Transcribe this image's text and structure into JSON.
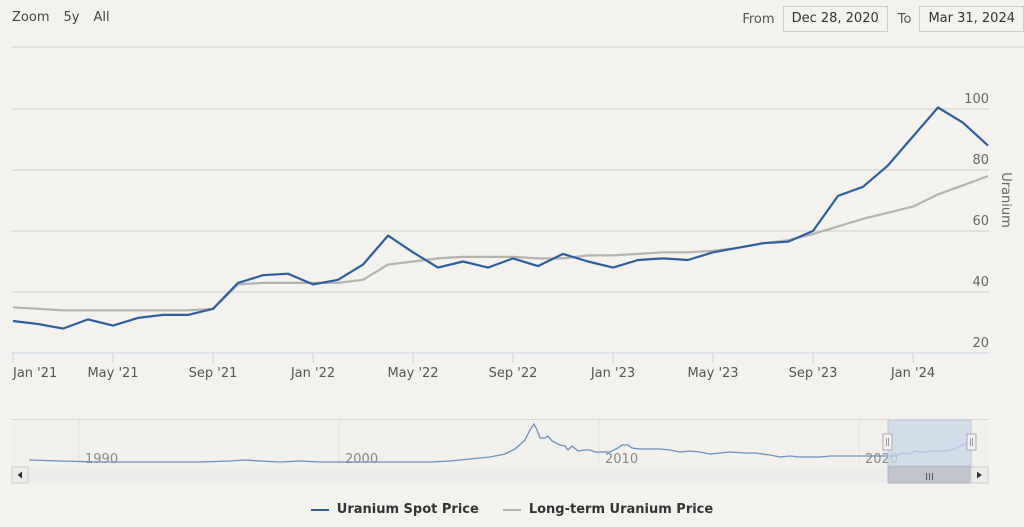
{
  "range_selector": {
    "zoom_label": "Zoom",
    "buttons": [
      "5y",
      "All"
    ],
    "from_label": "From",
    "from_value": "Dec 28, 2020",
    "to_label": "To",
    "to_value": "Mar 31, 2024"
  },
  "colors": {
    "spot": "#2d5f9e",
    "longterm": "#b5b3ae",
    "background": "#f3f2ee",
    "grid": "#d0cfcb",
    "navigator_mask": "#c9d7ea"
  },
  "chart_data": {
    "type": "line",
    "title": "",
    "xlabel": "",
    "ylabel": "Uranium",
    "ylim": [
      20,
      100
    ],
    "yticks": [
      20,
      40,
      60,
      80,
      100
    ],
    "xticks": [
      "Jan '21",
      "May '21",
      "Sep '21",
      "Jan '22",
      "May '22",
      "Sep '22",
      "Jan '23",
      "May '23",
      "Sep '23",
      "Jan '24"
    ],
    "grid": true,
    "legend_position": "bottom",
    "x": [
      "2021-01",
      "2021-02",
      "2021-03",
      "2021-04",
      "2021-05",
      "2021-06",
      "2021-07",
      "2021-08",
      "2021-09",
      "2021-10",
      "2021-11",
      "2021-12",
      "2022-01",
      "2022-02",
      "2022-03",
      "2022-04",
      "2022-05",
      "2022-06",
      "2022-07",
      "2022-08",
      "2022-09",
      "2022-10",
      "2022-11",
      "2022-12",
      "2023-01",
      "2023-02",
      "2023-03",
      "2023-04",
      "2023-05",
      "2023-06",
      "2023-07",
      "2023-08",
      "2023-09",
      "2023-10",
      "2023-11",
      "2023-12",
      "2024-01",
      "2024-02",
      "2024-03",
      "2024-04"
    ],
    "series": [
      {
        "name": "Uranium Spot Price",
        "values": [
          30.5,
          29.5,
          28,
          31,
          29,
          31.5,
          32.5,
          32.5,
          34.5,
          43,
          45.5,
          46,
          42.5,
          44,
          49,
          58.5,
          53,
          48,
          50,
          48,
          51,
          48.5,
          52.5,
          50,
          48,
          50.5,
          51,
          50.5,
          53,
          54.5,
          56,
          56.5,
          60,
          71.5,
          74.5,
          81.5,
          91,
          100.5,
          95.5,
          88
        ]
      },
      {
        "name": "Long-term Uranium Price",
        "values": [
          35,
          34.5,
          34,
          34,
          34,
          34,
          34,
          34,
          34.5,
          42.5,
          43,
          43,
          43,
          43,
          44,
          49,
          50,
          51,
          51.5,
          51.5,
          51.5,
          51,
          51,
          52,
          52,
          52.5,
          53,
          53,
          53.5,
          54.5,
          56,
          57,
          59,
          61.5,
          64,
          66,
          68,
          72,
          75,
          78
        ]
      }
    ]
  },
  "navigator": {
    "xticks": [
      "1990",
      "2000",
      "2010",
      "2020"
    ],
    "scroll_handle_label": "III"
  },
  "legend": [
    {
      "label": "Uranium Spot Price"
    },
    {
      "label": "Long-term Uranium Price"
    }
  ]
}
